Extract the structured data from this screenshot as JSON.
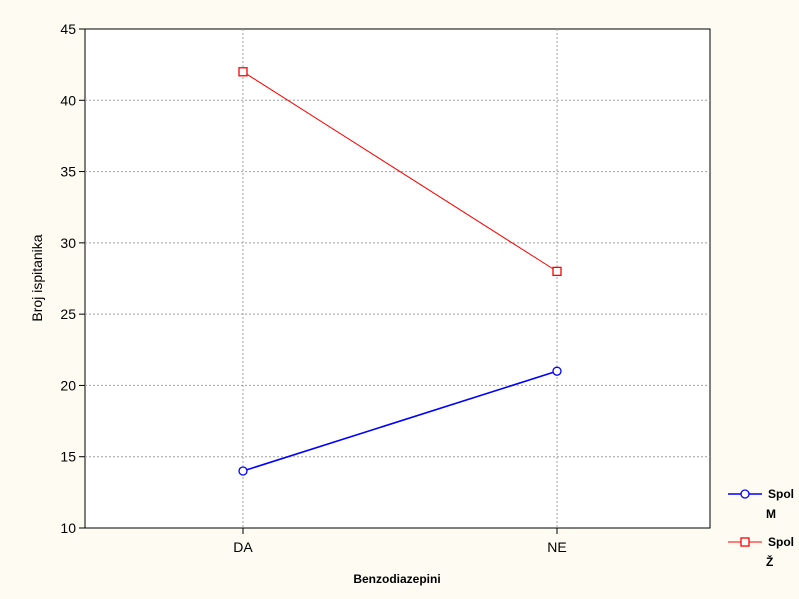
{
  "chart_data": {
    "type": "line",
    "title": "",
    "xlabel": "Benzodiazepini",
    "ylabel": "Broj ispitanika",
    "categories": [
      "DA",
      "NE"
    ],
    "ylim": [
      10,
      45
    ],
    "yticks": [
      "10",
      "15",
      "20",
      "25",
      "30",
      "35",
      "40",
      "45"
    ],
    "grid": true,
    "legend_position": "bottom-right",
    "series": [
      {
        "name_line1": "Spol",
        "name_line2": "M",
        "values": [
          14,
          21
        ],
        "color": "#0000ff",
        "marker": "circle"
      },
      {
        "name_line1": "Spol",
        "name_line2": "Ž",
        "values": [
          42,
          28
        ],
        "color": "#ff0000",
        "marker": "square"
      }
    ]
  }
}
